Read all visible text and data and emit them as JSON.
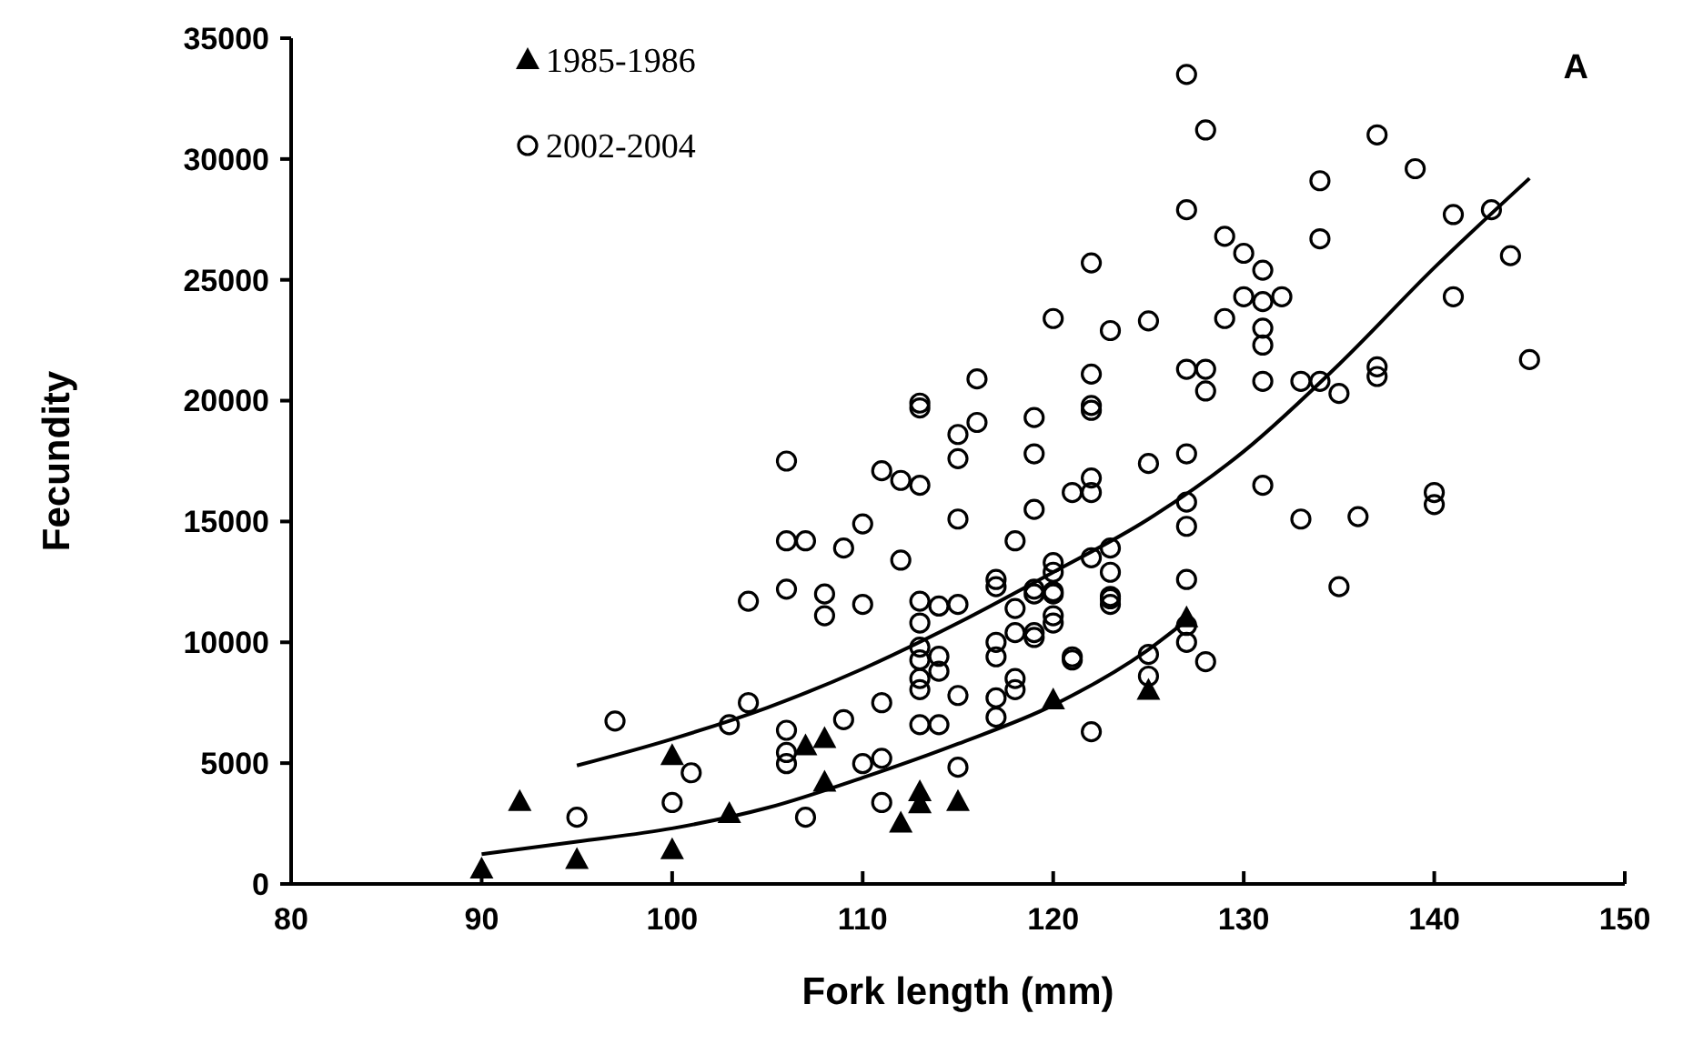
{
  "chart_data": {
    "type": "scatter",
    "xlabel": "Fork length (mm)",
    "ylabel": "Fecundity",
    "xlim": [
      80,
      150
    ],
    "xticks": [
      80,
      90,
      100,
      110,
      120,
      130,
      140,
      150
    ],
    "ylim": [
      0,
      35000
    ],
    "yticks": [
      0,
      5000,
      10000,
      15000,
      20000,
      25000,
      30000,
      35000
    ],
    "grid": false,
    "legend": "top left",
    "annotations": [
      "A"
    ],
    "series": [
      {
        "name": "1985-1986",
        "color": "#000000",
        "marker": "triangle",
        "x": [
          90,
          92,
          95,
          100,
          100,
          103,
          107,
          108,
          108,
          112,
          113,
          113,
          115,
          120,
          125,
          127
        ],
        "values": [
          600,
          3400,
          1000,
          5300,
          1400,
          2900,
          5700,
          6000,
          4200,
          2500,
          3300,
          3800,
          3400,
          7600,
          8000,
          11000
        ]
      },
      {
        "name": "2002-2004",
        "color": "#000000",
        "marker": "circle",
        "x": [
          95,
          97,
          100,
          101,
          103,
          104,
          104,
          106,
          106,
          106,
          106,
          106,
          106,
          107,
          107,
          108,
          108,
          109,
          109,
          110,
          110,
          110,
          111,
          111,
          111,
          111,
          112,
          112,
          113,
          113,
          113,
          113,
          113,
          113,
          113,
          113,
          113,
          113,
          114,
          114,
          114,
          114,
          115,
          115,
          115,
          115,
          115,
          115,
          116,
          116,
          117,
          117,
          117,
          117,
          117,
          117,
          118,
          118,
          118,
          118,
          118,
          119,
          119,
          119,
          119,
          119,
          119,
          119,
          120,
          120,
          120,
          120,
          120,
          120,
          120,
          121,
          121,
          121,
          122,
          122,
          122,
          122,
          122,
          122,
          122,
          122,
          123,
          123,
          123,
          123,
          123,
          123,
          125,
          125,
          125,
          125,
          127,
          127,
          127,
          127,
          127,
          127,
          127,
          127,
          127,
          128,
          128,
          128,
          128,
          129,
          129,
          130,
          130,
          131,
          131,
          131,
          131,
          131,
          131,
          132,
          133,
          133,
          134,
          134,
          134,
          135,
          135,
          136,
          137,
          137,
          137,
          139,
          140,
          140,
          141,
          141,
          143,
          144,
          145
        ],
        "values": [
          2760,
          6740,
          3370,
          4600,
          6590,
          7500,
          11700,
          17500,
          14200,
          12200,
          6360,
          5440,
          4980,
          14200,
          2760,
          12000,
          11100,
          13900,
          6800,
          14900,
          11570,
          4980,
          17100,
          7500,
          5200,
          3370,
          16700,
          13400,
          16500,
          19900,
          19700,
          11700,
          10800,
          9800,
          9270,
          8500,
          8040,
          6590,
          11500,
          9420,
          8800,
          6590,
          18600,
          17600,
          15100,
          11570,
          7800,
          4830,
          20900,
          19100,
          12600,
          12300,
          10000,
          9400,
          7700,
          6900,
          14200,
          11400,
          10400,
          8500,
          8040,
          19300,
          17800,
          15500,
          12200,
          12000,
          10400,
          10200,
          23400,
          13300,
          12900,
          12100,
          12000,
          11100,
          10800,
          16200,
          9400,
          9270,
          25700,
          21100,
          19800,
          19600,
          16800,
          16200,
          13500,
          6300,
          22900,
          13900,
          12900,
          11900,
          11800,
          11570,
          23300,
          17400,
          9500,
          8600,
          33500,
          27900,
          21300,
          17800,
          15800,
          14800,
          12600,
          10700,
          10000,
          31200,
          21300,
          20400,
          9200,
          26800,
          23400,
          26100,
          24300,
          25400,
          24100,
          23000,
          22300,
          20800,
          16500,
          24300,
          20800,
          15100,
          29100,
          26700,
          20800,
          20300,
          12300,
          15200,
          31000,
          21400,
          21000,
          29600,
          16200,
          15700,
          27700,
          24300,
          27900,
          26000,
          21700
        ]
      },
      {
        "type": "line",
        "color": "#000000",
        "line_style": "solid",
        "marker": "none",
        "x": [
          90,
          95,
          100,
          105,
          110,
          115,
          120,
          125,
          127
        ],
        "values": [
          1230,
          1750,
          2300,
          3150,
          4400,
          5800,
          7400,
          9700,
          10900
        ]
      },
      {
        "type": "line",
        "color": "#000000",
        "line_style": "solid",
        "marker": "none",
        "x": [
          95,
          100,
          105,
          110,
          115,
          120,
          125,
          130,
          135,
          140,
          145
        ],
        "values": [
          4900,
          6000,
          7300,
          8900,
          10800,
          12900,
          15100,
          17900,
          21500,
          25500,
          29200
        ]
      }
    ]
  }
}
